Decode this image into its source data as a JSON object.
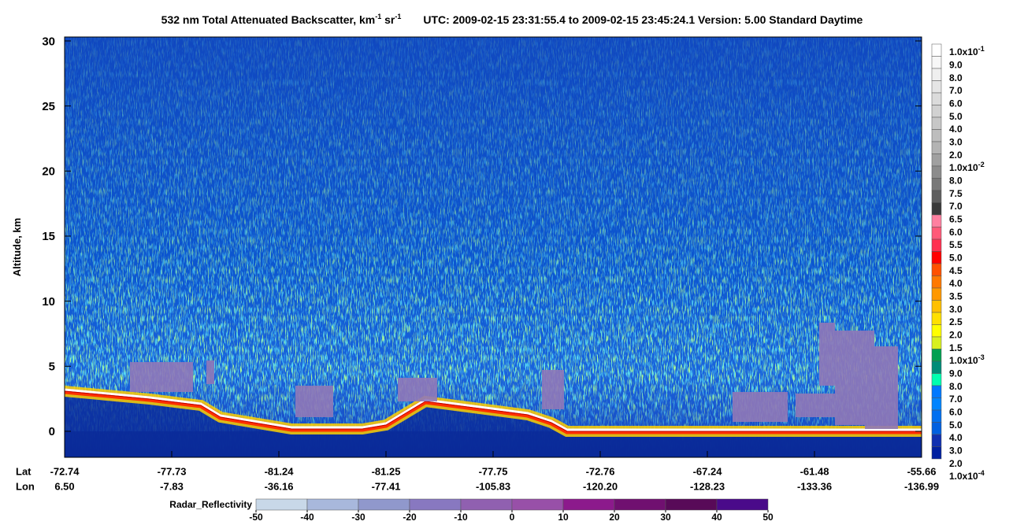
{
  "chart_data": {
    "type": "curtain",
    "title": {
      "part1": "532 nm Total Attenuated Backscatter, km",
      "sup1": "-1",
      "part2": " sr",
      "sup2": "-1",
      "part3": "UTC:  2009-02-15 23:31:55.4  to  2009-02-15 23:45:24.1     Version: 5.00  Standard  Daytime"
    },
    "y_label": "Altitude, km",
    "ylim": [
      -2,
      30
    ],
    "yticks": [
      0,
      5,
      10,
      15,
      20,
      25,
      30
    ],
    "x_axis": {
      "row_labels": [
        "Lat",
        "Lon"
      ],
      "lat": [
        "-72.74",
        "-77.73",
        "-81.24",
        "-81.25",
        "-77.75",
        "-72.76",
        "-67.24",
        "-61.48",
        "-55.66"
      ],
      "lon": [
        "6.50",
        "-7.83",
        "-36.16",
        "-77.41",
        "-105.83",
        "-120.20",
        "-128.23",
        "-133.36",
        "-136.99"
      ]
    },
    "colorbar": {
      "labels": [
        {
          "base": "1.0x10",
          "exp": "-1"
        },
        "9.0",
        "8.0",
        "7.0",
        "6.0",
        "5.0",
        "4.0",
        "3.0",
        "2.0",
        {
          "base": "1.0x10",
          "exp": "-2"
        },
        "8.0",
        "7.5",
        "7.0",
        "6.5",
        "6.0",
        "5.5",
        "5.0",
        "4.5",
        "4.0",
        "3.5",
        "3.0",
        "2.5",
        "2.0",
        "1.5",
        {
          "base": "1.0x10",
          "exp": "-3"
        },
        "9.0",
        "8.0",
        "7.0",
        "6.0",
        "5.0",
        "4.0",
        "3.0",
        "2.0",
        {
          "base": "1.0x10",
          "exp": "-4"
        }
      ],
      "colors": [
        "#ffffff",
        "#f7f7f7",
        "#efefef",
        "#e5e5e5",
        "#dbdbdb",
        "#d1d1d1",
        "#c7c7c7",
        "#bdbdbd",
        "#b3b3b3",
        "#a0a0a0",
        "#8c8c8c",
        "#787878",
        "#5f5f5f",
        "#3a3a3a",
        "#ff80a0",
        "#ff5a78",
        "#ff3050",
        "#ff0000",
        "#ff5000",
        "#ff7800",
        "#ff9800",
        "#ffc000",
        "#ffe000",
        "#ffff00",
        "#d8f020",
        "#00a050",
        "#008c78",
        "#00ffb0",
        "#0078ff",
        "#0084ff",
        "#0070f0",
        "#0060e0",
        "#1030b0",
        "#0020a0"
      ]
    },
    "radar": {
      "label": "Radar_Reflectivity",
      "ticks": [
        -50,
        -40,
        -30,
        -20,
        -10,
        0,
        10,
        20,
        30,
        40,
        50
      ],
      "colors": [
        "#c8d8e8",
        "#a8b8dc",
        "#9098cc",
        "#8878c0",
        "#9060b0",
        "#9850a8",
        "#8c1a8c",
        "#701070",
        "#580a58",
        "#4a0a8a"
      ]
    }
  }
}
